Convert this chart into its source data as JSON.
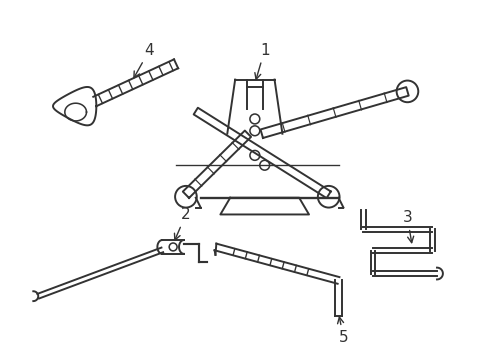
{
  "bg_color": "#ffffff",
  "line_color": "#333333",
  "lw": 1.4
}
